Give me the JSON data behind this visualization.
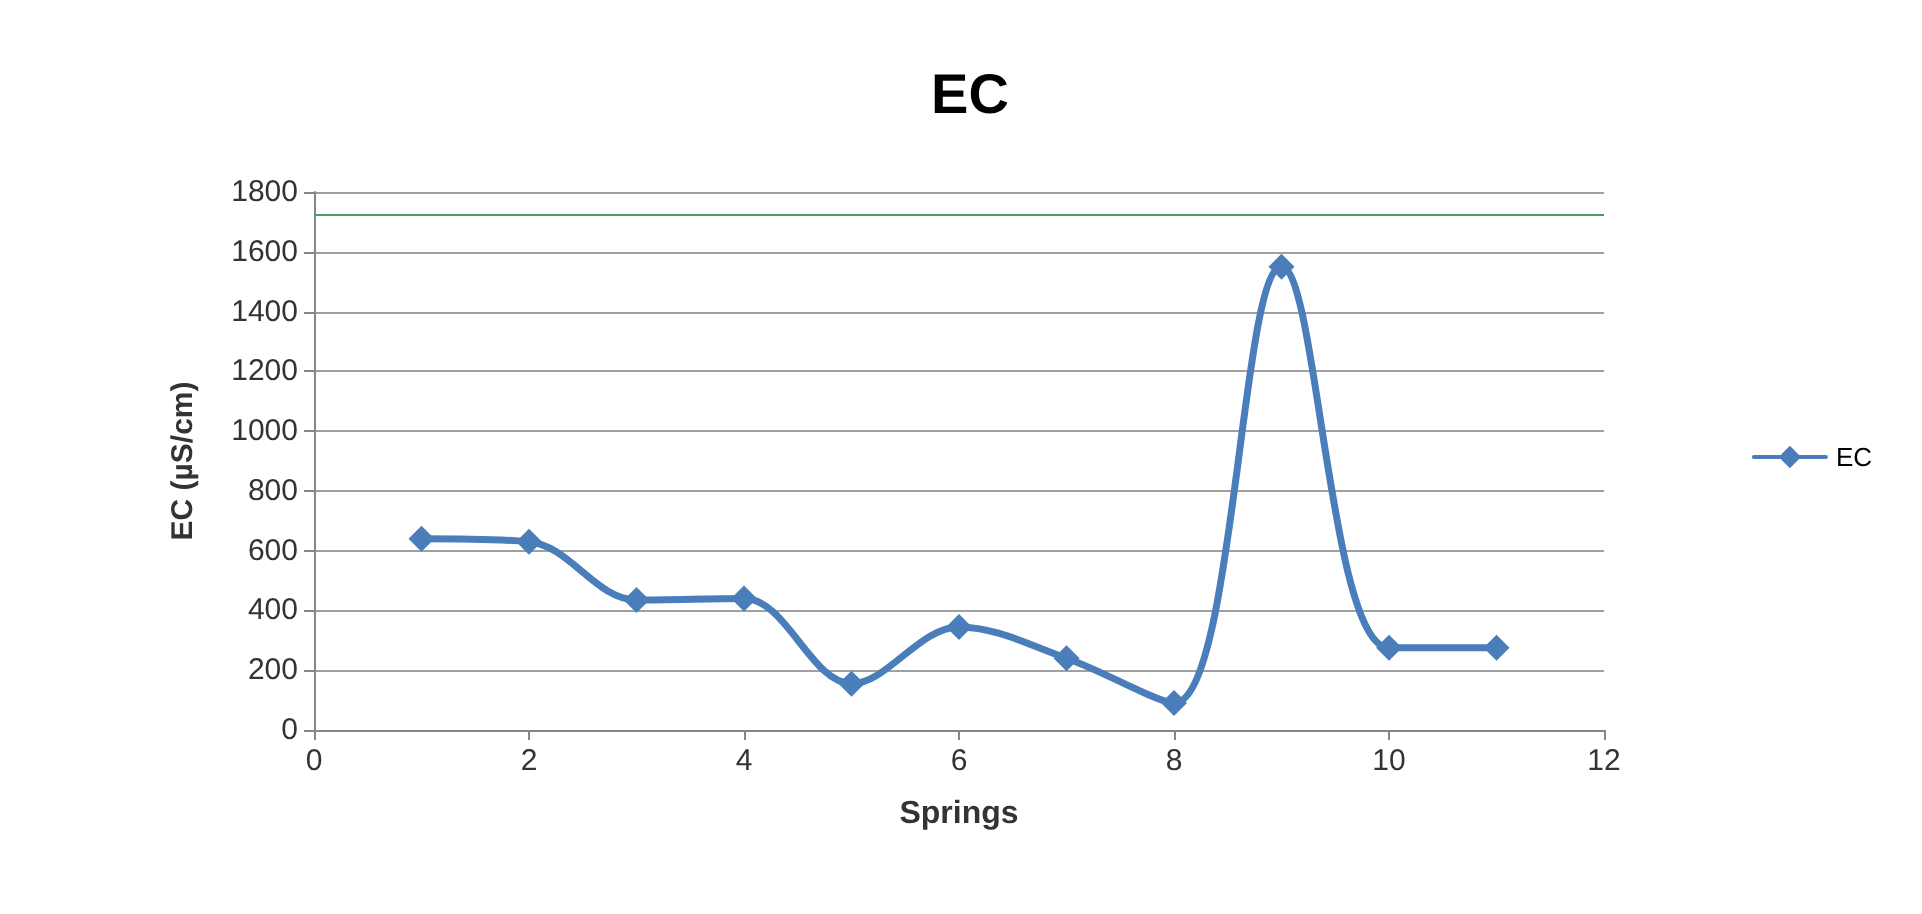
{
  "chart_data": {
    "type": "line",
    "title": "EC",
    "xlabel": "Springs",
    "ylabel": "EC (µS/cm)",
    "x": [
      1,
      2,
      3,
      4,
      5,
      6,
      7,
      8,
      9,
      10,
      11
    ],
    "series": [
      {
        "name": "EC",
        "color": "#4a7ebb",
        "values": [
          640,
          630,
          435,
          440,
          155,
          345,
          240,
          90,
          1550,
          275,
          275
        ]
      }
    ],
    "xlim": [
      0,
      12
    ],
    "xticks": [
      0,
      2,
      4,
      6,
      8,
      10,
      12
    ],
    "ylim": [
      0,
      1800
    ],
    "yticks": [
      0,
      200,
      400,
      600,
      800,
      1000,
      1200,
      1400,
      1600,
      1800
    ],
    "ref_lines": [
      {
        "axis": "y",
        "value": 1725,
        "color": "#4f9a6a"
      }
    ],
    "grid": "y",
    "legend": "right",
    "marker": "diamond",
    "line_style": "solid"
  }
}
